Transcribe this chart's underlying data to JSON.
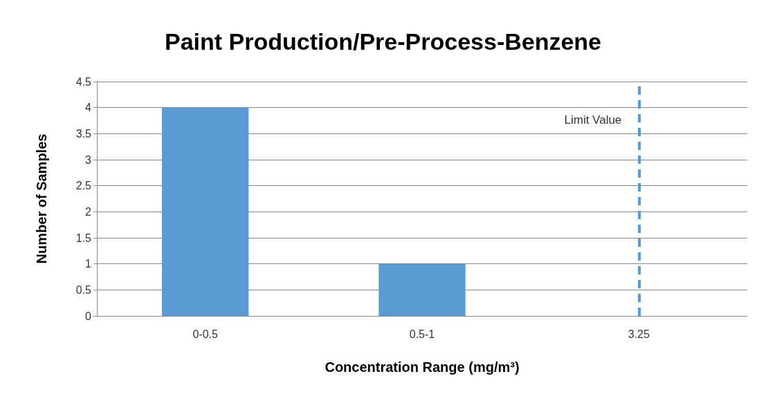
{
  "chart_data": {
    "type": "bar",
    "title": "Paint Production/Pre-Process-Benzene",
    "xlabel": "Concentration Range (mg/m³)",
    "ylabel": "Number of Samples",
    "categories": [
      "0-0.5",
      "0.5-1",
      "3.25"
    ],
    "series": [
      {
        "color": "#5b9bd5",
        "values": [
          4,
          1,
          null
        ]
      }
    ],
    "ylim": [
      0,
      4.5
    ],
    "yticks": [
      0,
      0.5,
      1,
      1.5,
      2,
      2.5,
      3,
      3.5,
      4,
      4.5
    ],
    "grid": "y",
    "ref_lines": [
      {
        "axis": "x",
        "value": "3.25",
        "label": "Limit Value",
        "color": "#5b9bd5",
        "line_style": "dashed"
      }
    ]
  }
}
